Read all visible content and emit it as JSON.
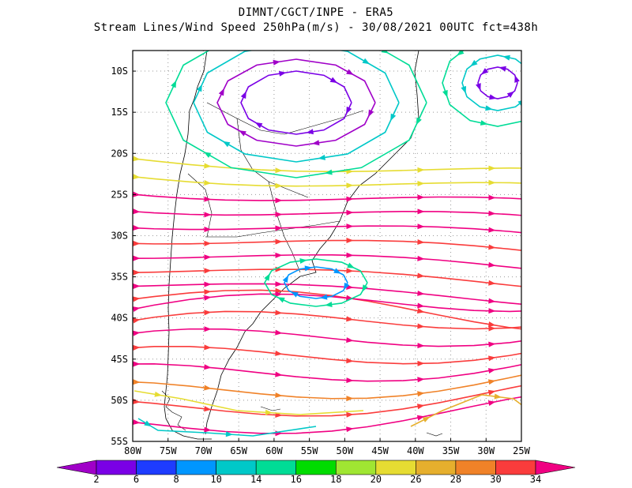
{
  "header": {
    "line1": "DIMNT/CGCT/INPE  -  ERA5",
    "line2": "Stream Lines/Wind Speed 250hPa(m/s)  -  30/08/2021 00UTC fct=438h"
  },
  "map": {
    "lon_labels": [
      "80W",
      "75W",
      "70W",
      "65W",
      "60W",
      "55W",
      "50W",
      "45W",
      "40W",
      "35W",
      "30W",
      "25W"
    ],
    "lat_labels": [
      "10S",
      "15S",
      "20S",
      "25S",
      "30S",
      "35S",
      "40S",
      "45S",
      "50S",
      "55S"
    ],
    "lon_range": [
      -80,
      -25
    ],
    "lat_range": [
      -55,
      -7.5
    ],
    "grid": "dotted"
  },
  "colorbar": {
    "levels": [
      "2",
      "6",
      "8",
      "10",
      "14",
      "16",
      "18",
      "20",
      "26",
      "28",
      "30",
      "34"
    ],
    "colors": [
      "#a000c8",
      "#7a00e6",
      "#1e3cff",
      "#0096ff",
      "#00c8c8",
      "#00dc96",
      "#00dc00",
      "#a0e632",
      "#e6dc32",
      "#e6af2d",
      "#f08228",
      "#fa3c3c",
      "#f00082"
    ]
  }
}
